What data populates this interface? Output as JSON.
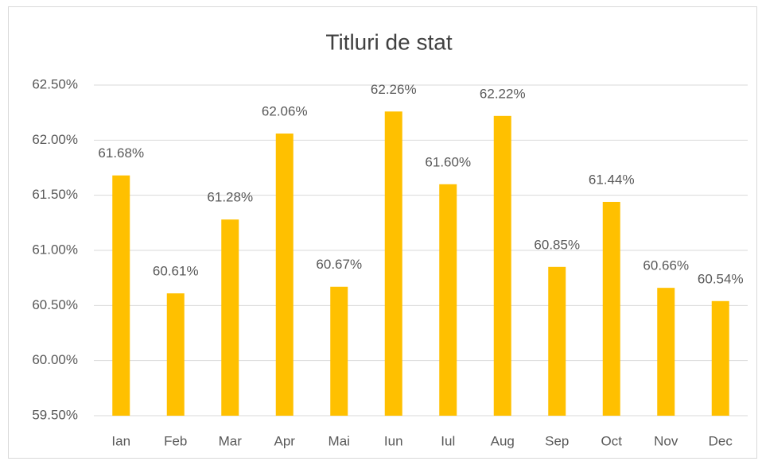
{
  "chart_data": {
    "type": "bar",
    "title": "Titluri de stat",
    "categories": [
      "Ian",
      "Feb",
      "Mar",
      "Apr",
      "Mai",
      "Iun",
      "Iul",
      "Aug",
      "Sep",
      "Oct",
      "Nov",
      "Dec"
    ],
    "values": [
      61.68,
      60.61,
      61.28,
      62.06,
      60.67,
      62.26,
      61.6,
      62.22,
      60.85,
      61.44,
      60.66,
      60.54
    ],
    "value_labels": [
      "61.68%",
      "60.61%",
      "61.28%",
      "62.06%",
      "60.67%",
      "62.26%",
      "61.60%",
      "62.22%",
      "60.85%",
      "61.44%",
      "60.66%",
      "60.54%"
    ],
    "color": "#ffc000",
    "ylim": [
      59.5,
      62.5
    ],
    "yticks": [
      {
        "value": 59.5,
        "label": "59.50%"
      },
      {
        "value": 60,
        "label": "60.00%"
      },
      {
        "value": 60.5,
        "label": "60.50%"
      },
      {
        "value": 61,
        "label": "61.00%"
      },
      {
        "value": 61.5,
        "label": "61.50%"
      },
      {
        "value": 62,
        "label": "62.00%"
      },
      {
        "value": 62.5,
        "label": "62.50%"
      }
    ],
    "grid": true
  }
}
